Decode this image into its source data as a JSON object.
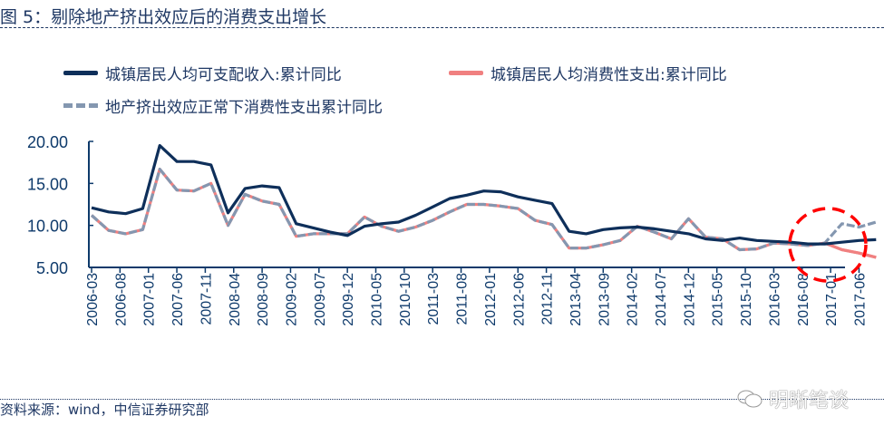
{
  "title": "图 5：剔除地产挤出效应后的消费支出增长",
  "source": "资料来源：wind，中信证券研究部",
  "watermark": "明晰笔谈",
  "colors": {
    "income": "#0e2f5a",
    "consumption": "#f08080",
    "adjusted": "#8497b0",
    "highlight": "#ff0000",
    "axis": "#0e3a6b",
    "text": "#1f3864"
  },
  "chart_data": {
    "type": "line",
    "title": "图 5：剔除地产挤出效应后的消费支出增长",
    "xlabel": "",
    "ylabel": "",
    "ylim": [
      5,
      20
    ],
    "yticks": [
      "20.00",
      "15.00",
      "10.00",
      "5.00"
    ],
    "ytick_values": [
      20,
      15,
      10,
      5
    ],
    "xtick_labels": [
      "2006-03",
      "2006-08",
      "2007-01",
      "2007-06",
      "2007-11",
      "2008-04",
      "2008-09",
      "2009-02",
      "2009-07",
      "2009-12",
      "2010-05",
      "2010-10",
      "2011-03",
      "2011-08",
      "2012-01",
      "2012-06",
      "2012-11",
      "2013-04",
      "2013-09",
      "2014-02",
      "2014-07",
      "2014-12",
      "2015-05",
      "2015-10",
      "2016-03",
      "2016-08",
      "2017-01",
      "2017-06"
    ],
    "grid": false,
    "legend_position": "top",
    "x": [
      "2006-03",
      "2006-06",
      "2006-09",
      "2006-12",
      "2007-03",
      "2007-06",
      "2007-09",
      "2007-12",
      "2008-03",
      "2008-06",
      "2008-09",
      "2008-12",
      "2009-03",
      "2009-06",
      "2009-09",
      "2009-12",
      "2010-03",
      "2010-06",
      "2010-09",
      "2010-12",
      "2011-03",
      "2011-06",
      "2011-09",
      "2011-12",
      "2012-03",
      "2012-06",
      "2012-09",
      "2012-12",
      "2013-03",
      "2013-06",
      "2013-09",
      "2013-12",
      "2014-03",
      "2014-06",
      "2014-09",
      "2014-12",
      "2015-03",
      "2015-06",
      "2015-09",
      "2015-12",
      "2016-03",
      "2016-06",
      "2016-09",
      "2016-12",
      "2017-03",
      "2017-06",
      "2017-09"
    ],
    "series": [
      {
        "name": "城镇居民人均可支配收入:累计同比",
        "style": "solid",
        "values": [
          12.1,
          11.6,
          11.4,
          12.0,
          19.5,
          17.6,
          17.6,
          17.2,
          11.5,
          14.4,
          14.7,
          14.5,
          10.2,
          9.7,
          9.2,
          8.8,
          9.9,
          10.2,
          10.4,
          11.2,
          12.2,
          13.2,
          13.6,
          14.1,
          14.0,
          13.4,
          13.0,
          12.6,
          9.3,
          9.0,
          9.5,
          9.7,
          9.8,
          9.6,
          9.3,
          9.0,
          8.4,
          8.2,
          8.5,
          8.2,
          8.1,
          8.0,
          7.8,
          7.8,
          8.0,
          8.2,
          8.3
        ]
      },
      {
        "name": "城镇居民人均消费性支出:累计同比",
        "style": "solid",
        "values": [
          11.2,
          9.4,
          9.0,
          9.5,
          16.7,
          14.2,
          14.1,
          15.0,
          10.0,
          13.7,
          12.9,
          12.5,
          8.7,
          9.0,
          9.0,
          9.0,
          11.0,
          9.9,
          9.3,
          9.8,
          10.6,
          11.6,
          12.5,
          12.5,
          12.3,
          12.0,
          10.6,
          10.1,
          7.3,
          7.3,
          7.7,
          8.2,
          9.9,
          9.2,
          8.4,
          10.8,
          8.6,
          8.4,
          7.1,
          7.2,
          7.9,
          7.8,
          7.6,
          7.9,
          7.1,
          6.7,
          6.2
        ]
      },
      {
        "name": "地产挤出效应正常下消费性支出累计同比",
        "style": "dashed",
        "values": [
          11.2,
          9.4,
          9.0,
          9.5,
          16.7,
          14.2,
          14.1,
          15.0,
          10.0,
          13.7,
          12.9,
          12.5,
          8.7,
          9.0,
          9.0,
          9.0,
          11.0,
          9.9,
          9.3,
          9.8,
          10.6,
          11.6,
          12.5,
          12.5,
          12.3,
          12.0,
          10.6,
          10.1,
          7.3,
          7.3,
          7.7,
          8.2,
          9.9,
          9.2,
          8.4,
          10.8,
          8.6,
          8.4,
          7.1,
          7.2,
          7.9,
          7.8,
          7.6,
          7.9,
          10.2,
          9.8,
          10.4
        ]
      }
    ],
    "annotations": [
      "red dashed circle highlighting 2017 divergence"
    ]
  },
  "legend": {
    "items": [
      {
        "label": "城镇居民人均可支配收入:累计同比"
      },
      {
        "label": "城镇居民人均消费性支出:累计同比"
      },
      {
        "label": "地产挤出效应正常下消费性支出累计同比"
      }
    ]
  }
}
